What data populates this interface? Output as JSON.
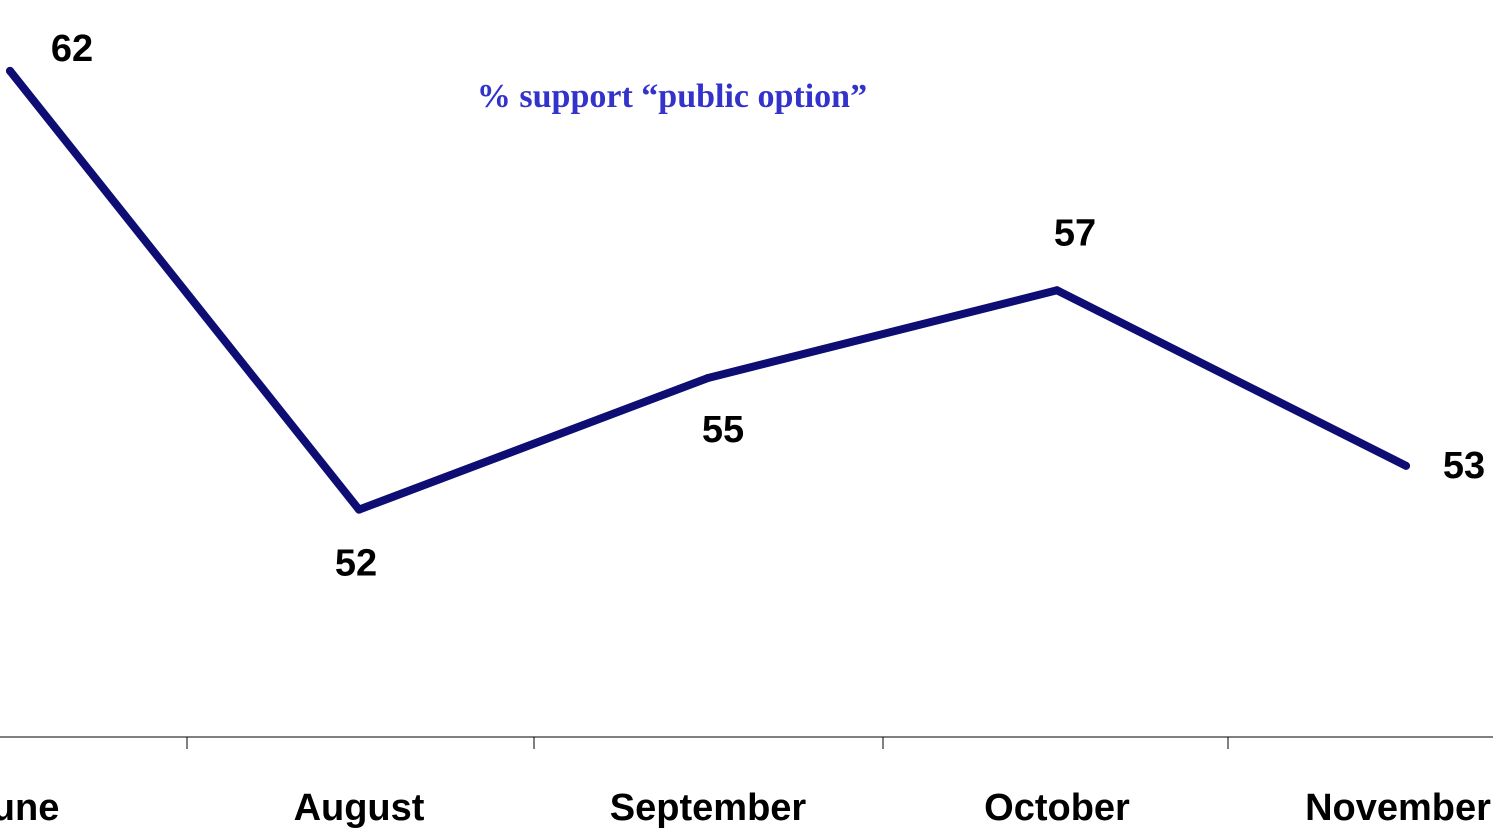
{
  "chart_data": {
    "type": "line",
    "title": "% support “public option”",
    "categories": [
      "June",
      "August",
      "September",
      "October",
      "November"
    ],
    "series": [
      {
        "values": [
          62,
          52,
          55,
          57,
          53
        ]
      }
    ],
    "xlabel": "",
    "ylabel": "",
    "ylim": [
      47,
      63
    ],
    "grid": false,
    "legend": "none",
    "colors": {
      "line": "#0d0d73",
      "title": "#3333cc",
      "axis": "#000000",
      "labels": "#000000"
    }
  }
}
